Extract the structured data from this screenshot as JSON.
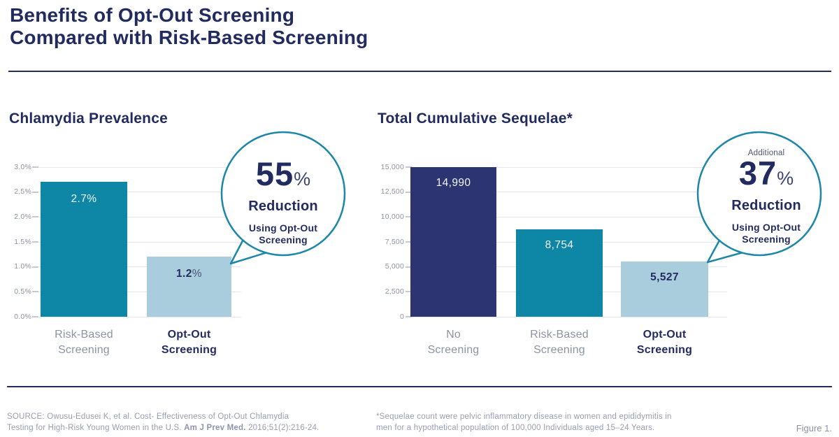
{
  "title": {
    "line1": "Benefits of Opt-Out Screening",
    "line2": "Compared with Risk-Based Screening"
  },
  "colors": {
    "navy_text": "#222B60",
    "navy_bar": "#2C3472",
    "teal_bar": "#0E87A6",
    "light_blue_bar": "#A9CDDC",
    "callout_ring": "#1C87A8",
    "gridline": "#E4E6EC",
    "axis_text": "#8E94A5",
    "footer_text": "#979DB5"
  },
  "chart_data": [
    {
      "type": "bar",
      "title": "Chlamydia Prevalence",
      "categories": [
        "Risk-Based Screening",
        "Opt-Out Screening"
      ],
      "values": [
        2.7,
        1.2
      ],
      "ylim": [
        0,
        3.0
      ],
      "ytick_step": 0.5,
      "ytick_labels": [
        "0.0%",
        "0.5%",
        "1.0%",
        "1.5%",
        "2.0%",
        "2.5%",
        "3.0%"
      ],
      "grid": true,
      "legend": null,
      "bars": [
        {
          "category_lines": [
            "Risk-Based",
            "Screening"
          ],
          "value": 2.7,
          "label": "2.7",
          "label_suffix": "%",
          "label_theme": "on-dark",
          "category_theme": "muted",
          "color": "#0E87A6"
        },
        {
          "category_lines": [
            "Opt-Out",
            "Screening"
          ],
          "value": 1.2,
          "label": "1.2",
          "label_suffix": "%",
          "label_theme": "on-light",
          "category_theme": "emphasis",
          "color": "#A9CDDC"
        }
      ],
      "callout": {
        "prefix": "",
        "value": "55",
        "suffix": "%",
        "label": "Reduction",
        "sub_lines": [
          "Using Opt-Out",
          "Screening"
        ]
      }
    },
    {
      "type": "bar",
      "title": "Total Cumulative Sequelae*",
      "categories": [
        "No Screening",
        "Risk-Based Screening",
        "Opt-Out Screening"
      ],
      "values": [
        14990,
        8754,
        5527
      ],
      "ylim": [
        0,
        15000
      ],
      "ytick_step": 2500,
      "ytick_labels": [
        "0",
        "2,500",
        "5,000",
        "7,500",
        "10,000",
        "12,500",
        "15,000"
      ],
      "grid": true,
      "legend": null,
      "bars": [
        {
          "category_lines": [
            "No",
            "Screening"
          ],
          "value": 14990,
          "label": "14,990",
          "label_suffix": "",
          "label_theme": "on-dark",
          "category_theme": "muted",
          "color": "#2C3472"
        },
        {
          "category_lines": [
            "Risk-Based",
            "Screening"
          ],
          "value": 8754,
          "label": "8,754",
          "label_suffix": "",
          "label_theme": "on-dark",
          "category_theme": "muted",
          "color": "#0E87A6"
        },
        {
          "category_lines": [
            "Opt-Out",
            "Screening"
          ],
          "value": 5527,
          "label": "5,527",
          "label_suffix": "",
          "label_theme": "on-light",
          "category_theme": "emphasis",
          "color": "#A9CDDC"
        }
      ],
      "callout": {
        "prefix": "Additional",
        "value": "37",
        "suffix": "%",
        "label": "Reduction",
        "sub_lines": [
          "Using Opt-Out",
          "Screening"
        ]
      }
    }
  ],
  "footer": {
    "source": {
      "line1": "SOURCE: Owusu-Edusei K, et al. Cost- Effectiveness of Opt-Out Chlamydia",
      "line2_pre": "Testing for High-Risk Young Women in the U.S. ",
      "line2_bold": "Am J Prev Med.",
      "line2_post": " 2016;51(2):216-24."
    },
    "footnote": {
      "line1": "*Sequelae count were pelvic inflammatory disease in women and epididymitis in",
      "line2": "men for a hypothetical population of 100,000 Individuals aged 15–24 Years."
    },
    "figure_label": "Figure 1."
  }
}
